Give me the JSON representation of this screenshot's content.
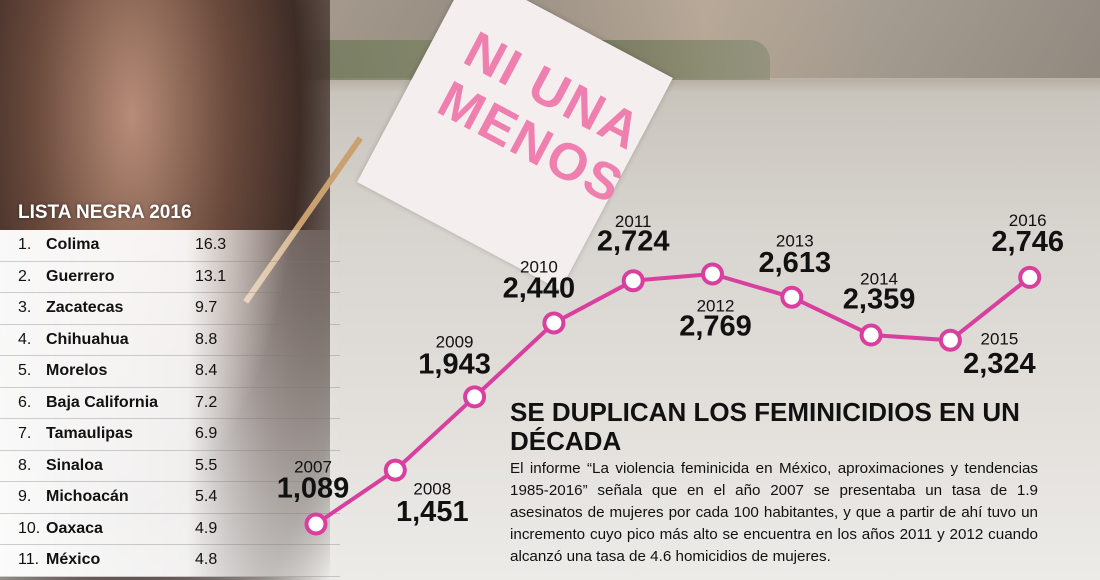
{
  "flag_text": "NI UNA MENOS",
  "ranking": {
    "title": "LISTA NEGRA 2016",
    "rows": [
      [
        "1.",
        "Colima",
        "16.3"
      ],
      [
        "2.",
        "Guerrero",
        "13.1"
      ],
      [
        "3.",
        "Zacatecas",
        "9.7"
      ],
      [
        "4.",
        "Chihuahua",
        "8.8"
      ],
      [
        "5.",
        "Morelos",
        "8.4"
      ],
      [
        "6.",
        "Baja California",
        "7.2"
      ],
      [
        "7.",
        "Tamaulipas",
        "6.9"
      ],
      [
        "8.",
        "Sinaloa",
        "5.5"
      ],
      [
        "9.",
        "Michoacán",
        "5.4"
      ],
      [
        "10.",
        "Oaxaca",
        "4.9"
      ],
      [
        "11.",
        "México",
        "4.8"
      ]
    ]
  },
  "chart_data": {
    "type": "line",
    "title": "SE DUPLICAN LOS FEMINICIDIOS EN UN DÉCADA",
    "description": "El informe “La violencia feminicida en México, aproximaciones y tendencias 1985-2016” señala que en el año 2007 se presentaba un tasa de 1.9 asesinatos de mujeres por cada 100 habitantes, y que a partir de ahí tuvo un incremento cuyo pico más alto se encuentra en los años 2011 y 2012 cuando alcanzó una tasa de 4.6 homicidios de mujeres.",
    "categories": [
      "2007",
      "2008",
      "2009",
      "2010",
      "2011",
      "2012",
      "2013",
      "2014",
      "2015",
      "2016"
    ],
    "values": [
      1089,
      1451,
      1943,
      2440,
      2724,
      2769,
      2613,
      2359,
      2324,
      2746
    ],
    "value_labels": [
      "1,089",
      "1,451",
      "1,943",
      "2,440",
      "2,724",
      "2,769",
      "2,613",
      "2,359",
      "2,324",
      "2,746"
    ],
    "color": "#d83f9e"
  }
}
